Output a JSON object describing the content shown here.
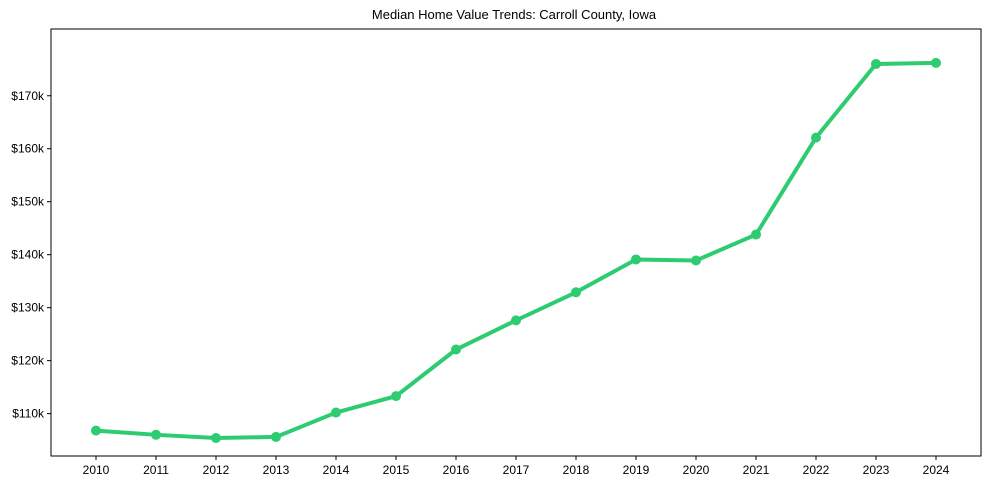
{
  "chart_data": {
    "type": "line",
    "title": "Median Home Value Trends: Carroll County, Iowa",
    "xlabel": "",
    "ylabel": "",
    "x": [
      2010,
      2011,
      2012,
      2013,
      2014,
      2015,
      2016,
      2017,
      2018,
      2019,
      2020,
      2021,
      2022,
      2023,
      2024
    ],
    "series": [
      {
        "name": "Median Home Value",
        "color": "#2ecc71",
        "values": [
          106800,
          106000,
          105400,
          105600,
          110200,
          113300,
          122100,
          127600,
          132900,
          139100,
          138900,
          143800,
          162100,
          176000,
          176200
        ]
      }
    ],
    "yticks": [
      110000,
      120000,
      130000,
      140000,
      150000,
      160000,
      170000
    ],
    "ytick_labels": [
      "$110k",
      "$120k",
      "$130k",
      "$140k",
      "$150k",
      "$160k",
      "$170k"
    ],
    "xtick_labels": [
      "2010",
      "2011",
      "2012",
      "2013",
      "2014",
      "2015",
      "2016",
      "2017",
      "2018",
      "2019",
      "2020",
      "2021",
      "2022",
      "2023",
      "2024"
    ],
    "ylim": [
      102000,
      182600
    ],
    "xlim": [
      2009.25,
      2024.75
    ],
    "grid": false,
    "legend": "none"
  }
}
